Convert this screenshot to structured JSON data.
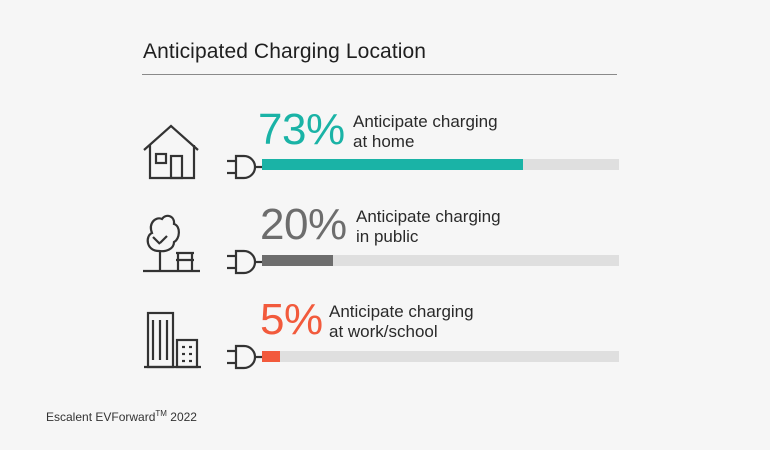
{
  "chart_data": {
    "type": "bar",
    "title": "Anticipated Charging Location",
    "categories": [
      "at home",
      "in public",
      "at work/school"
    ],
    "values": [
      73,
      20,
      5
    ],
    "ylim": [
      0,
      100
    ],
    "series": [
      {
        "pct_label": "73%",
        "line1": "Anticipate charging",
        "line2": "at home",
        "value": 73,
        "color": "#1ab3a6",
        "icon": "house-icon"
      },
      {
        "pct_label": "20%",
        "line1": "Anticipate charging",
        "line2": "in public",
        "value": 20,
        "color": "#6d6d6d",
        "icon": "park-tree-bench-icon"
      },
      {
        "pct_label": "5%",
        "line1": "Anticipate charging",
        "line2": "at work/school",
        "value": 5,
        "color": "#f25a3c",
        "icon": "office-building-icon"
      }
    ]
  },
  "colors": {
    "track": "#dfdfdf",
    "icon_stroke": "#333333",
    "background": "#f6f6f6"
  },
  "source": {
    "text": "Escalent EVForward",
    "trademark": "TM",
    "year": " 2022"
  }
}
